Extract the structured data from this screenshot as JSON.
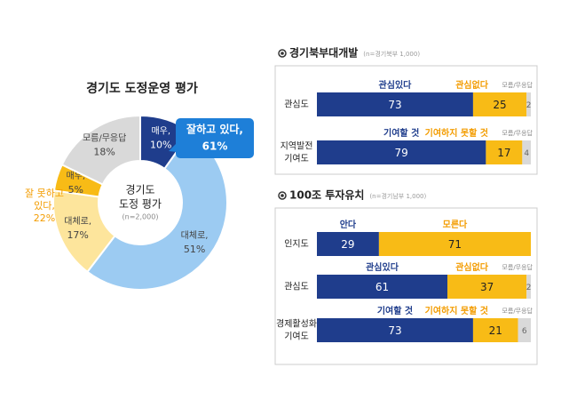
{
  "chart_data": [
    {
      "type": "pie",
      "title": "경기도 도정운영 평가",
      "center_label": [
        "경기도",
        "도정 평가"
      ],
      "note": "(n=2,000)",
      "categories": [
        "매우,",
        "대체로,",
        "대체로,",
        "매우,",
        "모름/무응답"
      ],
      "values": [
        10,
        51,
        17,
        5,
        18
      ],
      "value_labels": [
        "10%",
        "51%",
        "17%",
        "5%",
        "18%"
      ],
      "colors": [
        "#1f3d8c",
        "#9ccbf2",
        "#fde59c",
        "#f8bb16",
        "#d9d9d9"
      ],
      "annotations": [
        {
          "lines": [
            "잘하고 있다,",
            "61%"
          ],
          "color": "#1e7fd8"
        },
        {
          "lines": [
            "잘 못하고",
            "있다,",
            "22%"
          ],
          "color": "#f39c00"
        }
      ]
    },
    {
      "type": "stacked-bar",
      "title": "경기북부대개발",
      "subtitle": "(n=경기북부 1,000)",
      "xlim": [
        0,
        100
      ],
      "rows": [
        {
          "label": [
            "관심도"
          ],
          "series": [
            {
              "name": "관심있다",
              "color": "#1f3d8c",
              "values": [
                73
              ]
            },
            {
              "name": "관심없다",
              "color": "#f8bb16",
              "values": [
                25
              ]
            },
            {
              "name": "모름/무응답",
              "color": "#d9d9d9",
              "values": [
                2
              ]
            }
          ]
        },
        {
          "label": [
            "지역발전",
            "기여도"
          ],
          "series": [
            {
              "name": "기여할 것",
              "color": "#1f3d8c",
              "values": [
                79
              ]
            },
            {
              "name": "기여하지 못할 것",
              "color": "#f8bb16",
              "values": [
                17
              ]
            },
            {
              "name": "모름/무응답",
              "color": "#d9d9d9",
              "values": [
                4
              ]
            }
          ]
        }
      ]
    },
    {
      "type": "stacked-bar",
      "title": "100조 투자유치",
      "subtitle": "(n=경기남부 1,000)",
      "xlim": [
        0,
        100
      ],
      "rows": [
        {
          "label": [
            "인지도"
          ],
          "series": [
            {
              "name": "안다",
              "color": "#1f3d8c",
              "values": [
                29
              ]
            },
            {
              "name": "모른다",
              "color": "#f8bb16",
              "values": [
                71
              ]
            }
          ]
        },
        {
          "label": [
            "관심도"
          ],
          "series": [
            {
              "name": "관심있다",
              "color": "#1f3d8c",
              "values": [
                61
              ]
            },
            {
              "name": "관심없다",
              "color": "#f8bb16",
              "values": [
                37
              ]
            },
            {
              "name": "모름/무응답",
              "color": "#d9d9d9",
              "values": [
                2
              ]
            }
          ]
        },
        {
          "label": [
            "경제활성화",
            "기여도"
          ],
          "series": [
            {
              "name": "기여할 것",
              "color": "#1f3d8c",
              "values": [
                73
              ]
            },
            {
              "name": "기여하지 못할 것",
              "color": "#f8bb16",
              "values": [
                21
              ]
            },
            {
              "name": "모름/무응답",
              "color": "#d9d9d9",
              "values": [
                6
              ]
            }
          ]
        }
      ]
    }
  ]
}
